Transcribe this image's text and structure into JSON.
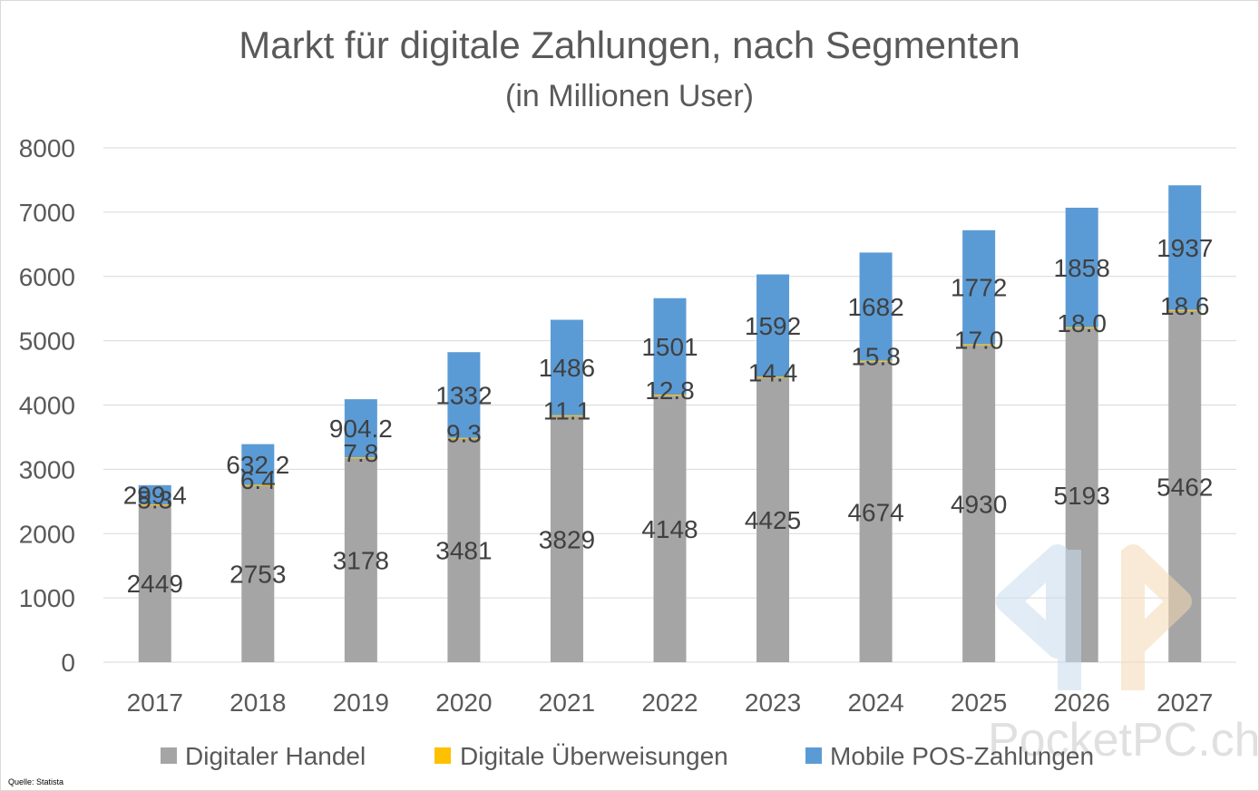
{
  "chart_data": {
    "type": "bar",
    "stacked": true,
    "title": "Markt für digitale Zahlungen, nach Segmenten",
    "subtitle": "(in Millionen User)",
    "categories": [
      "2017",
      "2018",
      "2019",
      "2020",
      "2021",
      "2022",
      "2023",
      "2024",
      "2025",
      "2026",
      "2027"
    ],
    "series": [
      {
        "name": "Digitaler Handel",
        "color": "#a5a5a5",
        "values": [
          2449,
          2753,
          3178,
          3481,
          3829,
          4148,
          4425,
          4674,
          4930,
          5193,
          5462
        ],
        "labels": [
          "2449",
          "2753",
          "3178",
          "3481",
          "3829",
          "4148",
          "4425",
          "4674",
          "4930",
          "5193",
          "5462"
        ]
      },
      {
        "name": "Digitale Überweisungen",
        "color": "#ffc000",
        "values": [
          5.3,
          6.4,
          7.8,
          9.3,
          11.1,
          12.8,
          14.4,
          15.8,
          17.0,
          18.0,
          18.6
        ],
        "labels": [
          "5.3",
          "6.4",
          "7.8",
          "9.3",
          "11.1",
          "12.8",
          "14.4",
          "15.8",
          "17.0",
          "18.0",
          "18.6"
        ]
      },
      {
        "name": "Mobile POS-Zahlungen",
        "color": "#5b9bd5",
        "values": [
          299.4,
          632.2,
          904.2,
          1332,
          1486,
          1501,
          1592,
          1682,
          1772,
          1858,
          1937
        ],
        "labels": [
          "299.4",
          "632.2",
          "904.2",
          "1332",
          "1486",
          "1501",
          "1592",
          "1682",
          "1772",
          "1858",
          "1937"
        ]
      }
    ],
    "ylim": [
      0,
      8000
    ],
    "yticks": [
      "0",
      "1000",
      "2000",
      "3000",
      "4000",
      "5000",
      "6000",
      "7000",
      "8000"
    ],
    "grid": true,
    "legend_position": "bottom",
    "source": "Quelle: Statista",
    "watermark": "PocketPC.ch"
  }
}
